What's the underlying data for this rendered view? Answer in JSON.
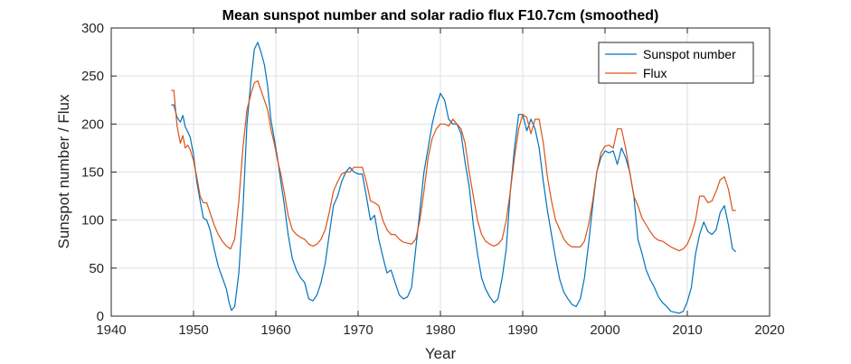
{
  "chart_data": {
    "type": "line",
    "title": "Mean sunspot number and solar radio flux F10.7cm (smoothed)",
    "xlabel": "Year",
    "ylabel": "Sunspot number / Flux",
    "xlim": [
      1940,
      2020
    ],
    "ylim": [
      0,
      300
    ],
    "xticks": [
      1940,
      1950,
      1960,
      1970,
      1980,
      1990,
      2000,
      2010,
      2020
    ],
    "yticks": [
      0,
      50,
      100,
      150,
      200,
      250,
      300
    ],
    "grid": true,
    "legend_position": "top-right",
    "series": [
      {
        "name": "Sunspot number",
        "color": "#0072bd",
        "x": [
          1947.3,
          1947.6,
          1948.0,
          1948.4,
          1948.7,
          1949.0,
          1949.3,
          1949.6,
          1950.0,
          1950.4,
          1950.8,
          1951.2,
          1951.6,
          1952.0,
          1952.5,
          1953.0,
          1953.5,
          1954.0,
          1954.3,
          1954.6,
          1955.0,
          1955.5,
          1956.0,
          1956.5,
          1957.0,
          1957.4,
          1957.8,
          1958.2,
          1958.6,
          1959.0,
          1959.4,
          1959.8,
          1960.2,
          1960.6,
          1961.0,
          1961.5,
          1962.0,
          1962.5,
          1963.0,
          1963.5,
          1964.0,
          1964.5,
          1965.0,
          1965.5,
          1966.0,
          1966.5,
          1967.0,
          1967.5,
          1968.0,
          1968.5,
          1969.0,
          1969.5,
          1970.0,
          1970.5,
          1971.0,
          1971.5,
          1972.0,
          1972.5,
          1973.0,
          1973.5,
          1974.0,
          1974.5,
          1975.0,
          1975.5,
          1976.0,
          1976.5,
          1977.0,
          1977.5,
          1978.0,
          1978.5,
          1979.0,
          1979.5,
          1980.0,
          1980.5,
          1981.0,
          1981.5,
          1982.0,
          1982.5,
          1983.0,
          1983.5,
          1984.0,
          1984.5,
          1985.0,
          1985.5,
          1986.0,
          1986.5,
          1987.0,
          1987.5,
          1988.0,
          1988.5,
          1989.0,
          1989.5,
          1990.0,
          1990.5,
          1991.0,
          1991.5,
          1992.0,
          1992.5,
          1993.0,
          1993.5,
          1994.0,
          1994.5,
          1995.0,
          1995.5,
          1996.0,
          1996.5,
          1997.0,
          1997.5,
          1998.0,
          1998.5,
          1999.0,
          1999.5,
          2000.0,
          2000.5,
          2001.0,
          2001.5,
          2002.0,
          2002.5,
          2003.0,
          2003.5,
          2004.0,
          2004.5,
          2005.0,
          2005.5,
          2006.0,
          2006.5,
          2007.0,
          2007.5,
          2008.0,
          2008.5,
          2009.0,
          2009.5,
          2010.0,
          2010.5,
          2011.0,
          2011.5,
          2012.0,
          2012.5,
          2013.0,
          2013.5,
          2014.0,
          2014.5,
          2015.0,
          2015.5,
          2015.9
        ],
        "values": [
          220,
          220,
          207,
          202,
          209,
          197,
          192,
          186,
          168,
          140,
          120,
          102,
          100,
          90,
          70,
          52,
          40,
          28,
          15,
          6,
          10,
          45,
          110,
          200,
          248,
          278,
          285,
          275,
          262,
          240,
          205,
          185,
          165,
          140,
          118,
          85,
          60,
          48,
          40,
          35,
          18,
          16,
          22,
          35,
          55,
          85,
          115,
          125,
          140,
          150,
          155,
          150,
          148,
          148,
          125,
          100,
          105,
          80,
          62,
          45,
          48,
          35,
          22,
          18,
          20,
          30,
          70,
          110,
          150,
          175,
          200,
          218,
          232,
          225,
          205,
          200,
          200,
          190,
          160,
          135,
          95,
          65,
          40,
          28,
          20,
          14,
          18,
          40,
          70,
          130,
          175,
          210,
          210,
          193,
          205,
          195,
          175,
          140,
          110,
          85,
          60,
          38,
          25,
          18,
          12,
          10,
          18,
          40,
          75,
          115,
          150,
          165,
          172,
          170,
          172,
          158,
          175,
          165,
          150,
          125,
          80,
          65,
          48,
          38,
          30,
          20,
          14,
          10,
          5,
          4,
          3,
          5,
          15,
          30,
          65,
          85,
          98,
          88,
          85,
          90,
          108,
          115,
          95,
          70,
          67
        ]
      },
      {
        "name": "Flux",
        "color": "#d95319",
        "x": [
          1947.3,
          1947.6,
          1948.0,
          1948.4,
          1948.7,
          1949.0,
          1949.3,
          1949.6,
          1950.0,
          1950.4,
          1950.8,
          1951.2,
          1951.6,
          1952.0,
          1952.5,
          1953.0,
          1953.5,
          1954.0,
          1954.5,
          1955.0,
          1955.5,
          1956.0,
          1956.5,
          1957.0,
          1957.4,
          1957.8,
          1958.2,
          1958.6,
          1959.0,
          1959.4,
          1959.8,
          1960.2,
          1960.6,
          1961.0,
          1961.5,
          1962.0,
          1962.5,
          1963.0,
          1963.5,
          1964.0,
          1964.5,
          1965.0,
          1965.5,
          1966.0,
          1966.5,
          1967.0,
          1967.5,
          1968.0,
          1968.5,
          1969.0,
          1969.5,
          1970.0,
          1970.5,
          1971.0,
          1971.5,
          1972.0,
          1972.5,
          1973.0,
          1973.5,
          1974.0,
          1974.5,
          1975.0,
          1975.5,
          1976.0,
          1976.5,
          1977.0,
          1977.5,
          1978.0,
          1978.5,
          1979.0,
          1979.5,
          1980.0,
          1980.5,
          1981.0,
          1981.5,
          1982.0,
          1982.5,
          1983.0,
          1983.5,
          1984.0,
          1984.5,
          1985.0,
          1985.5,
          1986.0,
          1986.5,
          1987.0,
          1987.5,
          1988.0,
          1988.5,
          1989.0,
          1989.5,
          1990.0,
          1990.5,
          1991.0,
          1991.5,
          1992.0,
          1992.5,
          1993.0,
          1993.5,
          1994.0,
          1994.5,
          1995.0,
          1995.5,
          1996.0,
          1996.5,
          1997.0,
          1997.5,
          1998.0,
          1998.5,
          1999.0,
          1999.5,
          2000.0,
          2000.5,
          2001.0,
          2001.5,
          2002.0,
          2002.5,
          2003.0,
          2003.5,
          2004.0,
          2004.5,
          2005.0,
          2005.5,
          2006.0,
          2006.5,
          2007.0,
          2007.5,
          2008.0,
          2008.5,
          2009.0,
          2009.5,
          2010.0,
          2010.5,
          2011.0,
          2011.5,
          2012.0,
          2012.5,
          2013.0,
          2013.5,
          2014.0,
          2014.5,
          2015.0,
          2015.5,
          2015.9
        ],
        "values": [
          235,
          235,
          198,
          180,
          188,
          175,
          178,
          173,
          162,
          145,
          125,
          118,
          118,
          108,
          95,
          85,
          78,
          73,
          70,
          80,
          120,
          175,
          215,
          232,
          243,
          245,
          235,
          225,
          215,
          195,
          180,
          163,
          148,
          130,
          105,
          90,
          85,
          82,
          80,
          75,
          73,
          75,
          80,
          90,
          108,
          130,
          140,
          148,
          150,
          150,
          155,
          155,
          155,
          140,
          120,
          118,
          115,
          100,
          90,
          85,
          85,
          80,
          77,
          76,
          75,
          80,
          100,
          130,
          165,
          185,
          195,
          200,
          200,
          198,
          205,
          200,
          195,
          180,
          150,
          125,
          100,
          85,
          78,
          75,
          73,
          75,
          80,
          100,
          130,
          165,
          195,
          210,
          207,
          190,
          205,
          205,
          180,
          145,
          120,
          100,
          90,
          80,
          75,
          72,
          72,
          72,
          78,
          95,
          120,
          150,
          170,
          177,
          178,
          175,
          195,
          195,
          175,
          150,
          125,
          115,
          102,
          95,
          88,
          82,
          79,
          78,
          75,
          72,
          70,
          68,
          70,
          75,
          85,
          100,
          125,
          125,
          118,
          120,
          130,
          142,
          145,
          132,
          110,
          110
        ]
      }
    ]
  }
}
